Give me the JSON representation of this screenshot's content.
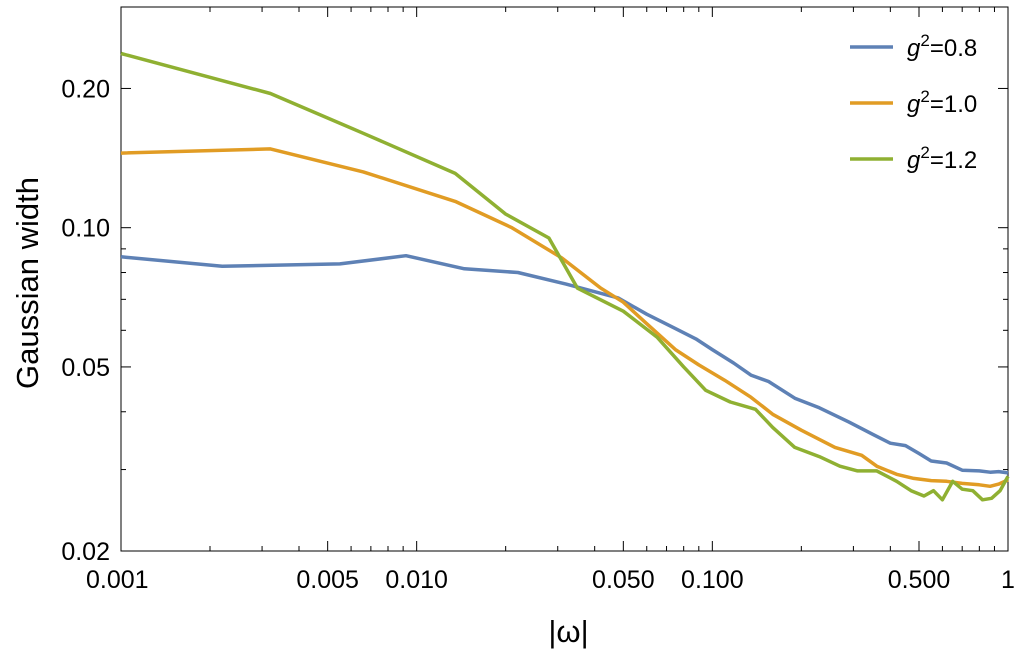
{
  "chart_data": {
    "type": "line",
    "xlabel": "|ω|",
    "ylabel": "Gaussian width",
    "xscale": "log",
    "yscale": "log",
    "xlim": [
      0.001,
      1.0
    ],
    "ylim": [
      0.02,
      0.3
    ],
    "grid": false,
    "legend_position": "top-right",
    "x_ticks": [
      {
        "value": 0.001,
        "label": "0.001"
      },
      {
        "value": 0.005,
        "label": "0.005"
      },
      {
        "value": 0.01,
        "label": "0.010"
      },
      {
        "value": 0.05,
        "label": "0.050"
      },
      {
        "value": 0.1,
        "label": "0.100"
      },
      {
        "value": 0.5,
        "label": "0.500"
      },
      {
        "value": 1.0,
        "label": "1"
      }
    ],
    "y_ticks": [
      {
        "value": 0.02,
        "label": "0.02"
      },
      {
        "value": 0.05,
        "label": "0.05"
      },
      {
        "value": 0.1,
        "label": "0.10"
      },
      {
        "value": 0.2,
        "label": "0.20"
      }
    ],
    "series": [
      {
        "name": "g²=0.8",
        "legend_base": "g",
        "legend_sup": "2",
        "legend_value": "=0.8",
        "color": "#5e81b5",
        "points": [
          [
            0.001,
            0.0865
          ],
          [
            0.0022,
            0.0825
          ],
          [
            0.0055,
            0.0835
          ],
          [
            0.0092,
            0.087
          ],
          [
            0.0145,
            0.0815
          ],
          [
            0.022,
            0.08
          ],
          [
            0.032,
            0.0755
          ],
          [
            0.048,
            0.0705
          ],
          [
            0.06,
            0.065
          ],
          [
            0.075,
            0.0605
          ],
          [
            0.088,
            0.0575
          ],
          [
            0.1,
            0.0545
          ],
          [
            0.118,
            0.051
          ],
          [
            0.135,
            0.048
          ],
          [
            0.155,
            0.0465
          ],
          [
            0.19,
            0.0428
          ],
          [
            0.23,
            0.0408
          ],
          [
            0.29,
            0.038
          ],
          [
            0.35,
            0.0357
          ],
          [
            0.4,
            0.0342
          ],
          [
            0.45,
            0.0338
          ],
          [
            0.5,
            0.0325
          ],
          [
            0.55,
            0.0313
          ],
          [
            0.62,
            0.031
          ],
          [
            0.7,
            0.0299
          ],
          [
            0.8,
            0.0298
          ],
          [
            0.87,
            0.0296
          ],
          [
            0.93,
            0.0297
          ],
          [
            1.0,
            0.0295
          ]
        ]
      },
      {
        "name": "g²=1.0",
        "legend_base": "g",
        "legend_sup": "2",
        "legend_value": "=1.0",
        "color": "#e19c24",
        "points": [
          [
            0.001,
            0.145
          ],
          [
            0.0032,
            0.148
          ],
          [
            0.0066,
            0.132
          ],
          [
            0.0135,
            0.114
          ],
          [
            0.021,
            0.1
          ],
          [
            0.031,
            0.086
          ],
          [
            0.042,
            0.074
          ],
          [
            0.05,
            0.069
          ],
          [
            0.06,
            0.062
          ],
          [
            0.075,
            0.0545
          ],
          [
            0.09,
            0.0505
          ],
          [
            0.11,
            0.0468
          ],
          [
            0.135,
            0.043
          ],
          [
            0.16,
            0.0395
          ],
          [
            0.2,
            0.0365
          ],
          [
            0.26,
            0.0335
          ],
          [
            0.32,
            0.0322
          ],
          [
            0.36,
            0.0305
          ],
          [
            0.42,
            0.0293
          ],
          [
            0.48,
            0.0287
          ],
          [
            0.55,
            0.0284
          ],
          [
            0.62,
            0.0283
          ],
          [
            0.7,
            0.028
          ],
          [
            0.8,
            0.0278
          ],
          [
            0.87,
            0.0276
          ],
          [
            0.93,
            0.0279
          ],
          [
            1.0,
            0.0285
          ]
        ]
      },
      {
        "name": "g²=1.2",
        "legend_base": "g",
        "legend_sup": "2",
        "legend_value": "=1.2",
        "color": "#8fb032",
        "points": [
          [
            0.001,
            0.238
          ],
          [
            0.0032,
            0.195
          ],
          [
            0.0066,
            0.16
          ],
          [
            0.0135,
            0.131
          ],
          [
            0.02,
            0.107
          ],
          [
            0.028,
            0.095
          ],
          [
            0.035,
            0.074
          ],
          [
            0.05,
            0.066
          ],
          [
            0.065,
            0.058
          ],
          [
            0.08,
            0.05
          ],
          [
            0.095,
            0.0445
          ],
          [
            0.115,
            0.042
          ],
          [
            0.14,
            0.0405
          ],
          [
            0.16,
            0.037
          ],
          [
            0.19,
            0.0335
          ],
          [
            0.23,
            0.032
          ],
          [
            0.27,
            0.0305
          ],
          [
            0.31,
            0.0298
          ],
          [
            0.36,
            0.0298
          ],
          [
            0.42,
            0.0283
          ],
          [
            0.47,
            0.027
          ],
          [
            0.52,
            0.0263
          ],
          [
            0.56,
            0.027
          ],
          [
            0.6,
            0.0258
          ],
          [
            0.65,
            0.0283
          ],
          [
            0.7,
            0.0272
          ],
          [
            0.76,
            0.027
          ],
          [
            0.82,
            0.0258
          ],
          [
            0.88,
            0.026
          ],
          [
            0.94,
            0.027
          ],
          [
            1.0,
            0.029
          ]
        ]
      }
    ]
  }
}
